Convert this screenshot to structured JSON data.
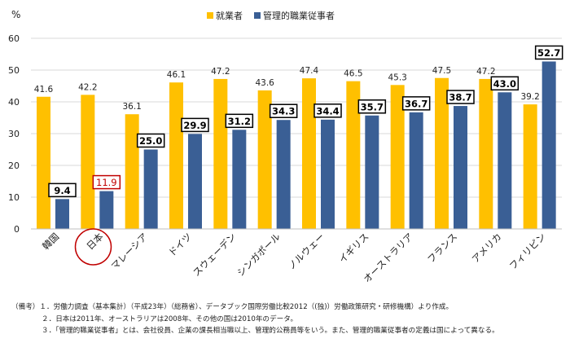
{
  "chart_data": {
    "type": "bar",
    "unit_label": "%",
    "ylim": [
      0,
      60
    ],
    "yticks": [
      0,
      10,
      20,
      30,
      40,
      50,
      60
    ],
    "grid": true,
    "legend_position": "top-center",
    "categories": [
      "韓国",
      "日本",
      "マレーシア",
      "ドイツ",
      "スウェーデン",
      "シンガポール",
      "ノルウェー",
      "イギリス",
      "オーストラリア",
      "フランス",
      "アメリカ",
      "フィリピン"
    ],
    "highlight_category": "日本",
    "series": [
      {
        "name": "就業者",
        "color": "#FFC000",
        "values": [
          41.6,
          42.2,
          36.1,
          46.1,
          47.2,
          43.6,
          47.4,
          46.5,
          45.3,
          47.5,
          47.2,
          39.2
        ]
      },
      {
        "name": "管理的職業従事者",
        "color": "#3A5F95",
        "values": [
          9.4,
          11.9,
          25.0,
          29.9,
          31.2,
          34.3,
          34.4,
          35.7,
          36.7,
          38.7,
          43.0,
          52.7
        ]
      }
    ],
    "highlight_color": "#C00000"
  },
  "notes": {
    "line1": "（備考）１．労働力調査（基本集計）（平成23年）（総務省）、データブック国際労働比較2012（(独)）労働政策研究・研修機構）より作成。",
    "line2": "２．日本は2011年、オーストラリアは2008年、その他の国は2010年のデータ。",
    "line3": "３．「管理的職業従事者」とは、会社役員、企業の課長相当職以上、管理的公務員等をいう。また、管理的職業従事者の定義は国によって異なる。"
  }
}
